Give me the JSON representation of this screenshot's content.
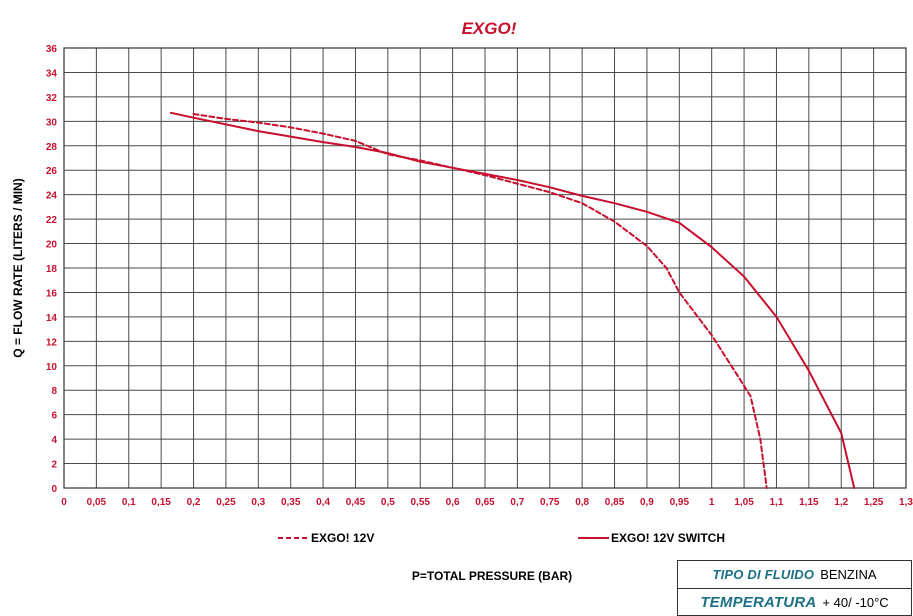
{
  "chart_data": {
    "type": "line",
    "title": "EXGO!",
    "xlabel": "P=TOTAL PRESSURE (BAR)",
    "ylabel": "Q = FLOW RATE (LITERS / MIN)",
    "xlim": [
      0,
      1.3
    ],
    "ylim": [
      0,
      36
    ],
    "x_ticks": [
      "0",
      "0,05",
      "0,1",
      "0,15",
      "0,2",
      "0,25",
      "0,3",
      "0,35",
      "0,4",
      "0,45",
      "0,5",
      "0,55",
      "0,6",
      "0,65",
      "0,7",
      "0,75",
      "0,8",
      "0,85",
      "0,9",
      "0,95",
      "1",
      "1,05",
      "1,1",
      "1,15",
      "1,2",
      "1,25",
      "1,3"
    ],
    "y_ticks": [
      "0",
      "2",
      "4",
      "6",
      "8",
      "10",
      "12",
      "14",
      "16",
      "18",
      "20",
      "22",
      "24",
      "26",
      "28",
      "30",
      "32",
      "34",
      "36"
    ],
    "grid": true,
    "legend_position": "bottom",
    "series_color": "#c8102e",
    "series": [
      {
        "name": "EXGO! 12V",
        "style": "dashed",
        "points": [
          [
            0.2,
            30.6
          ],
          [
            0.25,
            30.2
          ],
          [
            0.3,
            29.9
          ],
          [
            0.35,
            29.5
          ],
          [
            0.4,
            29.0
          ],
          [
            0.45,
            28.4
          ],
          [
            0.5,
            27.3
          ],
          [
            0.55,
            26.8
          ],
          [
            0.6,
            26.2
          ],
          [
            0.65,
            25.6
          ],
          [
            0.7,
            24.9
          ],
          [
            0.75,
            24.2
          ],
          [
            0.8,
            23.3
          ],
          [
            0.85,
            21.8
          ],
          [
            0.9,
            19.8
          ],
          [
            0.93,
            18.0
          ],
          [
            0.95,
            16.0
          ],
          [
            1.0,
            12.5
          ],
          [
            1.04,
            9.2
          ],
          [
            1.06,
            7.5
          ],
          [
            1.075,
            4.0
          ],
          [
            1.085,
            0.0
          ]
        ]
      },
      {
        "name": "EXGO! 12V SWITCH",
        "style": "solid",
        "points": [
          [
            0.165,
            30.7
          ],
          [
            0.2,
            30.3
          ],
          [
            0.3,
            29.2
          ],
          [
            0.4,
            28.3
          ],
          [
            0.45,
            27.9
          ],
          [
            0.5,
            27.4
          ],
          [
            0.55,
            26.7
          ],
          [
            0.6,
            26.2
          ],
          [
            0.65,
            25.7
          ],
          [
            0.7,
            25.2
          ],
          [
            0.75,
            24.6
          ],
          [
            0.8,
            23.9
          ],
          [
            0.85,
            23.3
          ],
          [
            0.9,
            22.6
          ],
          [
            0.95,
            21.7
          ],
          [
            1.0,
            19.7
          ],
          [
            1.05,
            17.3
          ],
          [
            1.1,
            14.0
          ],
          [
            1.15,
            9.6
          ],
          [
            1.2,
            4.5
          ],
          [
            1.22,
            0.0
          ]
        ]
      }
    ]
  },
  "info_table": {
    "rows": [
      {
        "key": "TIPO DI FLUIDO",
        "value": "BENZINA"
      },
      {
        "key": "TEMPERATURA",
        "value": "+ 40/ -10°C"
      }
    ]
  }
}
